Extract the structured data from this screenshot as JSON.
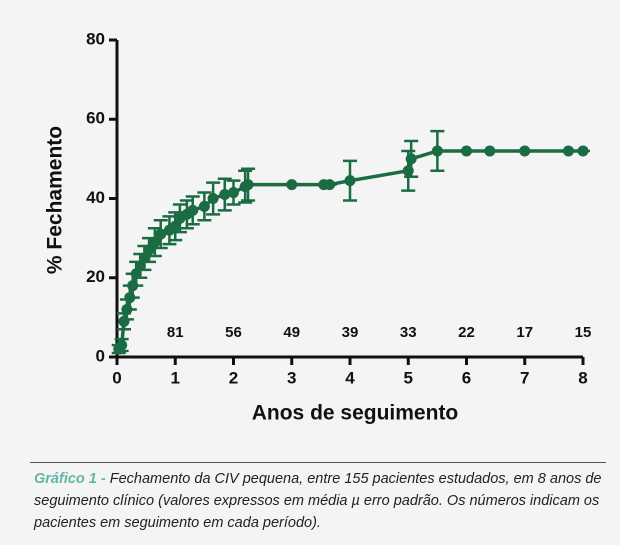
{
  "chart_data": {
    "type": "line",
    "x_label": "Anos de seguimento",
    "y_label": "% Fechamento",
    "x": [
      0.03,
      0.08,
      0.12,
      0.17,
      0.22,
      0.27,
      0.33,
      0.4,
      0.47,
      0.55,
      0.65,
      0.75,
      0.9,
      1.0,
      1.08,
      1.2,
      1.3,
      1.5,
      1.65,
      1.85,
      2.0,
      2.2,
      2.25,
      3.0,
      3.55,
      3.65,
      4.0,
      5.0,
      5.05,
      5.5,
      6.0,
      6.4,
      7.0,
      7.75,
      8.0
    ],
    "series": [
      {
        "name": "Fechamento",
        "color": "#1b6b43",
        "values": [
          2,
          3,
          9,
          12,
          15,
          18,
          21,
          23,
          25,
          27,
          29,
          31,
          32,
          33,
          35,
          36,
          37,
          38,
          40,
          41,
          41.5,
          43,
          43.5,
          43.5,
          43.5,
          43.5,
          44.5,
          47,
          50,
          52,
          52,
          52,
          52,
          52,
          52
        ],
        "errors": [
          1,
          1.5,
          2,
          2.5,
          3,
          3,
          3,
          3,
          3,
          3,
          3.5,
          3.5,
          3.5,
          3.5,
          3.5,
          3.5,
          3.5,
          3.5,
          4,
          4,
          3,
          4,
          4,
          0,
          0,
          0,
          5,
          5,
          4.5,
          5,
          0,
          0,
          0,
          0,
          0
        ]
      }
    ],
    "xlim": [
      0,
      8
    ],
    "xticks": [
      0,
      1,
      2,
      3,
      4,
      5,
      6,
      7,
      8
    ],
    "ylim": [
      0,
      80
    ],
    "yticks": [
      0,
      20,
      40,
      60,
      80
    ],
    "annotations": [
      {
        "x": 1,
        "label": "81"
      },
      {
        "x": 2,
        "label": "56"
      },
      {
        "x": 3,
        "label": "49"
      },
      {
        "x": 4,
        "label": "39"
      },
      {
        "x": 5,
        "label": "33"
      },
      {
        "x": 6,
        "label": "22"
      },
      {
        "x": 7,
        "label": "17"
      },
      {
        "x": 8,
        "label": "15"
      }
    ],
    "annotation_y": 6
  },
  "caption": {
    "label": "Gráfico 1 - ",
    "text": "Fechamento da CIV pequena, entre 155 pacientes estudados, em 8 anos de seguimento clínico (valores expressos em média µ erro padrão. Os números indicam os pacientes em seguimento em cada período)."
  }
}
